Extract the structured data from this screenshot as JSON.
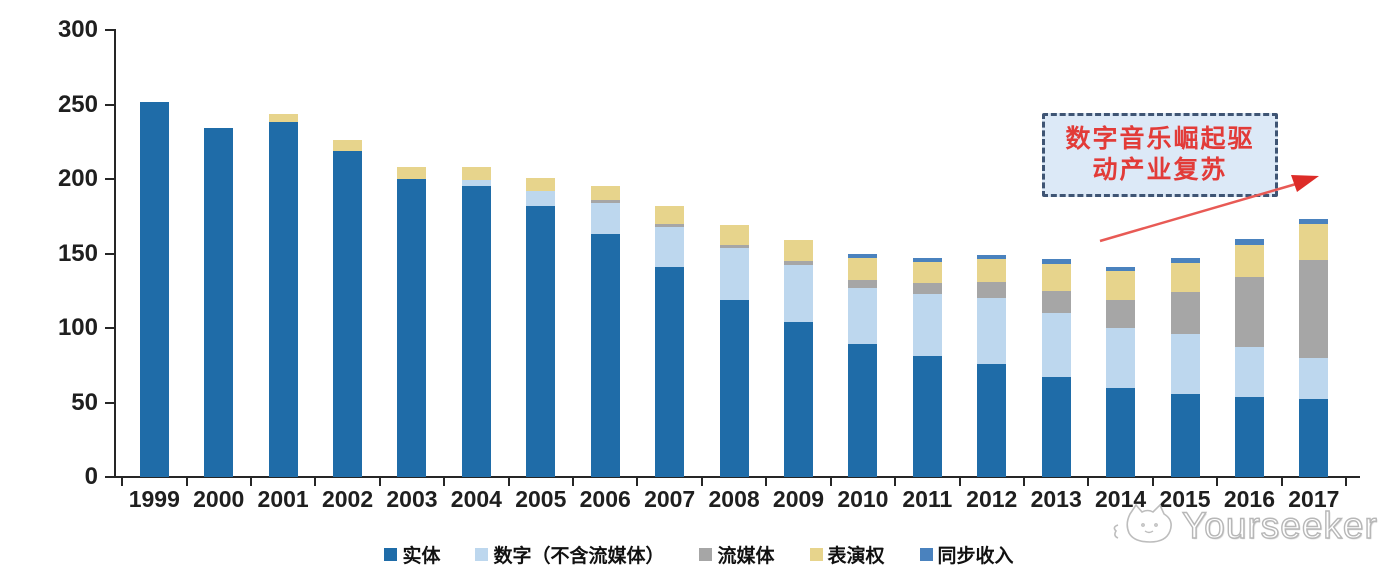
{
  "chart_data": {
    "type": "bar",
    "subtype": "stacked-vertical",
    "title": "",
    "xlabel": "",
    "ylabel": "",
    "ylim": [
      0,
      300
    ],
    "yticks": [
      0,
      50,
      100,
      150,
      200,
      250,
      300
    ],
    "grid": false,
    "legend_position": "bottom",
    "categories": [
      "1999",
      "2000",
      "2001",
      "2002",
      "2003",
      "2004",
      "2005",
      "2006",
      "2007",
      "2008",
      "2009",
      "2010",
      "2011",
      "2012",
      "2013",
      "2014",
      "2015",
      "2016",
      "2017"
    ],
    "series": [
      {
        "name": "实体",
        "color": "#1F6CA8",
        "values": [
          252,
          234,
          238,
          219,
          200,
          195,
          182,
          163,
          141,
          119,
          104,
          89,
          81,
          76,
          67,
          60,
          56,
          54,
          52
        ]
      },
      {
        "name": "数字（不含流媒体）",
        "color": "#BDD7EE",
        "values": [
          0,
          0,
          0,
          0,
          0,
          4,
          10,
          21,
          27,
          35,
          38,
          38,
          42,
          44,
          43,
          40,
          40,
          33,
          28
        ]
      },
      {
        "name": "流媒体",
        "color": "#A6A6A6",
        "values": [
          0,
          0,
          0,
          0,
          0,
          0,
          0,
          2,
          2,
          2,
          3,
          5,
          7,
          11,
          15,
          19,
          28,
          47,
          66
        ]
      },
      {
        "name": "表演权",
        "color": "#E7D48C",
        "values": [
          0,
          0,
          6,
          7,
          8,
          9,
          9,
          9,
          12,
          13,
          14,
          15,
          14,
          15,
          18,
          19,
          20,
          22,
          24
        ]
      },
      {
        "name": "同步收入",
        "color": "#4A82BE",
        "values": [
          0,
          0,
          0,
          0,
          0,
          0,
          0,
          0,
          0,
          0,
          0,
          3,
          3,
          3,
          3,
          3,
          3,
          4,
          3
        ]
      }
    ]
  },
  "annotation": {
    "text_line1": "数字音乐崛起驱",
    "text_line2": "动产业复苏",
    "text_color": "#E23B38",
    "box_fill": "#DCE9F7",
    "border_color": "#3F5574",
    "arrow_color": "#E85A55",
    "arrowhead_color": "#DD2C28"
  },
  "watermark": {
    "text": "Yourseeker",
    "logo": "cat-logo-icon"
  }
}
